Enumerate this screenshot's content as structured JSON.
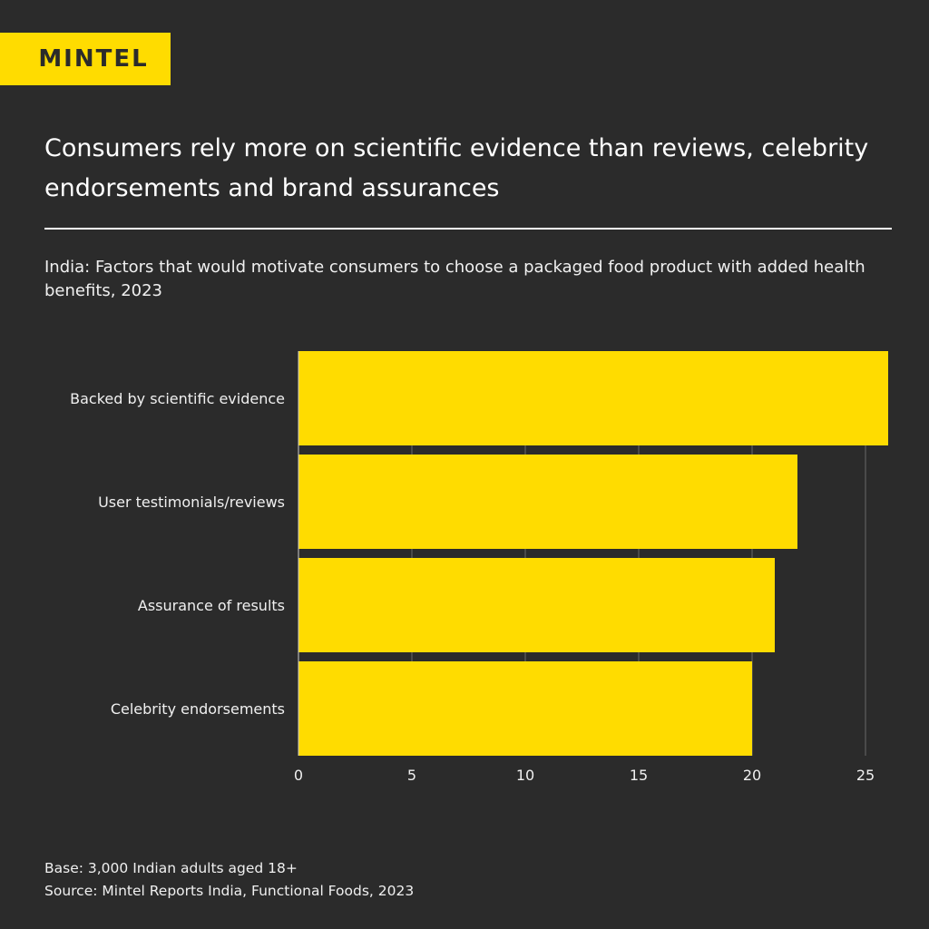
{
  "logo": "MINTEL",
  "title": "Consumers rely more on scientific evidence than reviews, celebrity endorsements and brand assurances",
  "subtitle": "India: Factors that would motivate consumers to choose a packaged food product with added health benefits, 2023",
  "footer": {
    "base": "Base: 3,000 Indian adults aged 18+",
    "source": "Source: Mintel Reports India, Functional Foods, 2023"
  },
  "colors": {
    "bar": "#ffdc00",
    "background": "#2b2b2b"
  },
  "chart_data": {
    "type": "bar",
    "orientation": "horizontal",
    "categories": [
      "Backed by scientific evidence",
      "User testimonials/reviews",
      "Assurance of results",
      "Celebrity endorsements"
    ],
    "values": [
      26,
      22,
      21,
      20
    ],
    "xticks": [
      "0",
      "5",
      "10",
      "15",
      "20",
      "25"
    ],
    "xlim": [
      0,
      26
    ],
    "grid": true
  }
}
